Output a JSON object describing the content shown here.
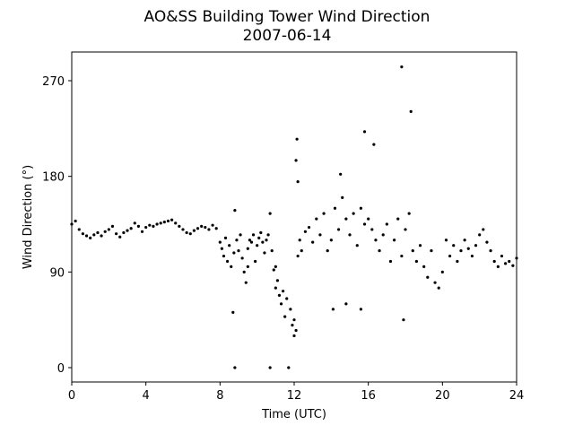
{
  "chart_data": {
    "type": "scatter",
    "title": "AO&SS Building Tower Wind Direction",
    "subtitle": "2007-06-14",
    "xlabel": "Time (UTC)",
    "ylabel": "Wind Direction (°)",
    "color": "#000000",
    "xlim": [
      0,
      24
    ],
    "xticks": [
      0,
      4,
      8,
      12,
      16,
      20,
      24
    ],
    "ylim": [
      -13.5,
      297
    ],
    "yticks": [
      0,
      90,
      180,
      270
    ],
    "grid": false,
    "x": [
      0,
      0.2,
      0.4,
      0.6,
      0.8,
      1.0,
      1.2,
      1.4,
      1.6,
      1.8,
      2.0,
      2.2,
      2.4,
      2.6,
      2.8,
      3.0,
      3.2,
      3.4,
      3.6,
      3.8,
      4.0,
      4.2,
      4.4,
      4.6,
      4.8,
      5.0,
      5.2,
      5.4,
      5.6,
      5.8,
      6.0,
      6.2,
      6.4,
      6.6,
      6.8,
      7.0,
      7.2,
      7.4,
      7.6,
      7.8,
      8.0,
      8.1,
      8.2,
      8.3,
      8.4,
      8.5,
      8.6,
      8.7,
      8.75,
      8.8,
      8.8,
      8.9,
      9.0,
      9.1,
      9.2,
      9.3,
      9.4,
      9.5,
      9.5,
      9.6,
      9.7,
      9.8,
      9.9,
      10.0,
      10.1,
      10.2,
      10.3,
      10.4,
      10.5,
      10.6,
      10.7,
      10.7,
      10.8,
      10.9,
      11.0,
      11.0,
      11.1,
      11.2,
      11.3,
      11.4,
      11.5,
      11.6,
      11.7,
      11.8,
      11.9,
      12.0,
      12.0,
      12.1,
      12.2,
      12.2,
      12.3,
      12.4,
      12.6,
      12.8,
      13.0,
      13.2,
      13.4,
      13.6,
      13.8,
      14.0,
      14.2,
      14.4,
      14.6,
      14.8,
      15.0,
      15.2,
      15.4,
      15.6,
      15.8,
      16.0,
      16.2,
      16.4,
      16.6,
      16.8,
      17.0,
      17.2,
      17.4,
      17.6,
      17.8,
      18.0,
      18.2,
      18.4,
      18.6,
      18.8,
      19.0,
      19.2,
      19.4,
      19.6,
      19.8,
      20.0,
      20.2,
      20.4,
      20.6,
      20.8,
      21.0,
      21.2,
      21.4,
      21.6,
      21.8,
      22.0,
      22.2,
      22.4,
      22.6,
      22.8,
      23.0,
      23.2,
      23.4,
      23.6,
      23.8,
      24.0,
      12.15,
      12.1,
      14.1,
      14.5,
      15.6,
      15.8,
      16.3,
      17.8,
      17.9,
      18.3,
      14.8
    ],
    "y": [
      135,
      138,
      130,
      126,
      124,
      122,
      125,
      127,
      124,
      128,
      130,
      133,
      126,
      123,
      127,
      129,
      131,
      136,
      133,
      128,
      132,
      134,
      133,
      135,
      136,
      137,
      138,
      139,
      136,
      133,
      130,
      127,
      126,
      129,
      131,
      133,
      132,
      130,
      134,
      131,
      118,
      112,
      105,
      122,
      100,
      115,
      95,
      52,
      108,
      0,
      148,
      120,
      110,
      125,
      103,
      90,
      80,
      95,
      112,
      120,
      118,
      125,
      100,
      115,
      122,
      127,
      118,
      108,
      120,
      125,
      145,
      0,
      110,
      92,
      75,
      95,
      82,
      68,
      60,
      72,
      48,
      65,
      0,
      55,
      40,
      30,
      45,
      35,
      175,
      105,
      120,
      110,
      128,
      132,
      118,
      140,
      125,
      145,
      110,
      120,
      150,
      130,
      160,
      140,
      125,
      145,
      115,
      150,
      135,
      140,
      130,
      120,
      110,
      125,
      135,
      100,
      120,
      140,
      105,
      130,
      145,
      110,
      100,
      115,
      95,
      85,
      110,
      80,
      75,
      90,
      120,
      105,
      115,
      100,
      110,
      120,
      112,
      105,
      115,
      125,
      130,
      118,
      110,
      100,
      95,
      105,
      98,
      100,
      96,
      103,
      215,
      195,
      55,
      182,
      55,
      222,
      210,
      283,
      45,
      241,
      60
    ]
  }
}
